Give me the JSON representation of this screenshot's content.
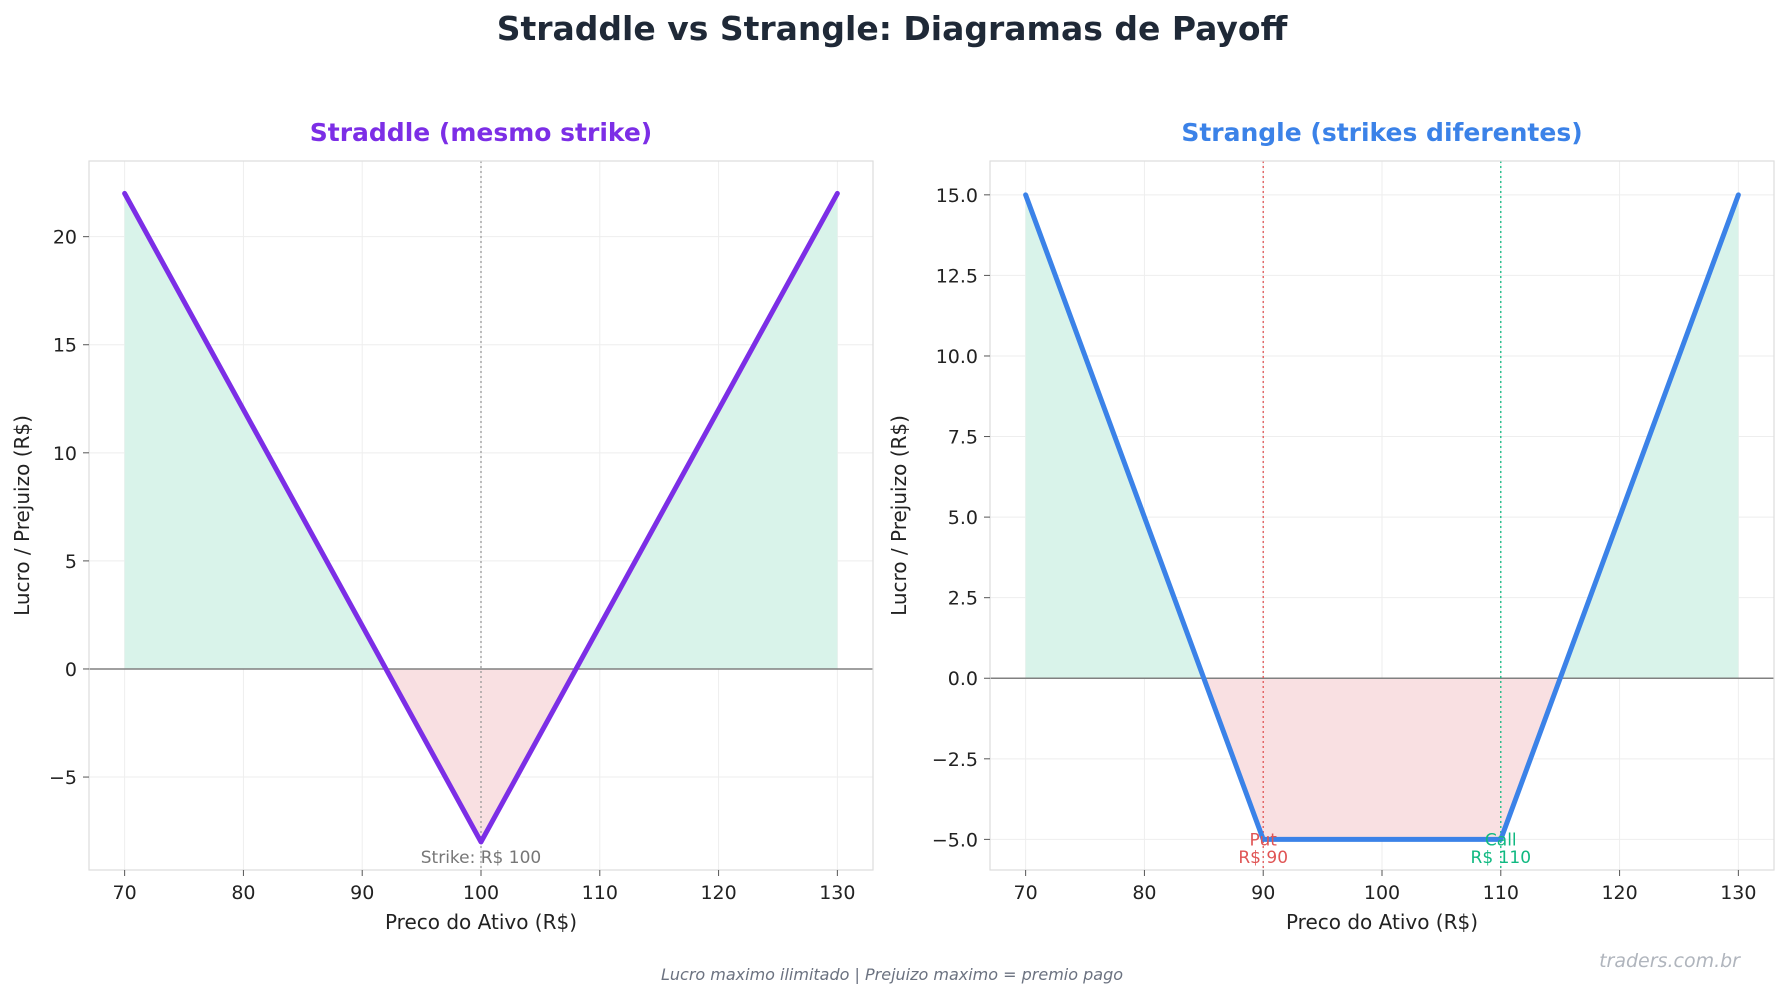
{
  "figure": {
    "title": "Straddle vs Strangle: Diagramas de Payoff",
    "footer": "Lucro maximo ilimitado | Prejuizo maximo = premio pago",
    "watermark": "traders.com.br"
  },
  "colors": {
    "title": "#1f2937",
    "straddle": "#7c2ee6",
    "strangle": "#3b82e8",
    "profit_fill": "#d9f3ea",
    "loss_fill": "#f9e0e2",
    "zero_line": "#808080",
    "grid": "#eeeeee",
    "spine": "#dddddd",
    "put": "#e05555",
    "call": "#10b981",
    "strike": "#999999"
  },
  "chart_data": [
    {
      "type": "line",
      "title": "Straddle (mesmo strike)",
      "xlabel": "Preco do Ativo (R$)",
      "ylabel": "Lucro / Prejuizo (R$)",
      "xlim": [
        67,
        133
      ],
      "ylim": [
        -9.3,
        23.5
      ],
      "xticks": [
        70,
        80,
        90,
        100,
        110,
        120,
        130
      ],
      "yticks": [
        -5,
        0,
        5,
        10,
        15,
        20
      ],
      "ytick_labels": [
        "−5",
        "0",
        "5",
        "10",
        "15",
        "20"
      ],
      "grid": true,
      "series": [
        {
          "x": [
            70,
            100,
            130
          ],
          "y": [
            22,
            -8,
            22
          ]
        }
      ],
      "strike_lines": [
        {
          "x": 100,
          "style": "strike"
        }
      ],
      "annotations": [
        {
          "text": "Strike: R$ 100",
          "x": 100,
          "y": -8.7,
          "style": "strike"
        }
      ]
    },
    {
      "type": "line",
      "title": "Strangle (strikes diferentes)",
      "xlabel": "Preco do Ativo (R$)",
      "ylabel": "Lucro / Prejuizo (R$)",
      "xlim": [
        67,
        133
      ],
      "ylim": [
        -5.95,
        16.05
      ],
      "xticks": [
        70,
        80,
        90,
        100,
        110,
        120,
        130
      ],
      "yticks": [
        -5,
        -2.5,
        0,
        2.5,
        5,
        7.5,
        10,
        12.5,
        15
      ],
      "ytick_labels": [
        "−5.0",
        "−2.5",
        "0.0",
        "2.5",
        "5.0",
        "7.5",
        "10.0",
        "12.5",
        "15.0"
      ],
      "grid": true,
      "series": [
        {
          "x": [
            70,
            90,
            110,
            130
          ],
          "y": [
            15,
            -5,
            -5,
            15
          ]
        }
      ],
      "strike_lines": [
        {
          "x": 90,
          "style": "put"
        },
        {
          "x": 110,
          "style": "call"
        }
      ],
      "annotations": [
        {
          "text": "Put",
          "x": 90,
          "y": -5.0,
          "style": "put"
        },
        {
          "text": "R$ 90",
          "x": 90,
          "y": -5.55,
          "style": "put"
        },
        {
          "text": "Call",
          "x": 110,
          "y": -5.0,
          "style": "call"
        },
        {
          "text": "R$ 110",
          "x": 110,
          "y": -5.55,
          "style": "call"
        }
      ]
    }
  ]
}
